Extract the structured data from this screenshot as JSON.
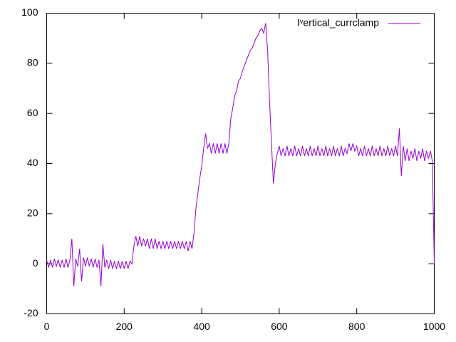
{
  "chart_data": {
    "type": "line",
    "x": [
      0,
      5,
      10,
      15,
      20,
      25,
      30,
      35,
      40,
      45,
      50,
      55,
      60,
      65,
      70,
      75,
      80,
      85,
      90,
      95,
      100,
      105,
      110,
      115,
      120,
      125,
      130,
      135,
      140,
      145,
      150,
      155,
      160,
      165,
      170,
      175,
      180,
      185,
      190,
      195,
      200,
      205,
      210,
      215,
      220,
      225,
      230,
      235,
      240,
      245,
      250,
      255,
      260,
      265,
      270,
      275,
      280,
      285,
      290,
      295,
      300,
      305,
      310,
      315,
      320,
      325,
      330,
      335,
      340,
      345,
      350,
      355,
      360,
      365,
      370,
      375,
      380,
      385,
      390,
      395,
      400,
      405,
      410,
      415,
      420,
      425,
      430,
      435,
      440,
      445,
      450,
      455,
      460,
      465,
      470,
      475,
      480,
      485,
      490,
      495,
      500,
      505,
      510,
      515,
      520,
      525,
      530,
      535,
      540,
      545,
      550,
      555,
      560,
      565,
      570,
      575,
      580,
      585,
      590,
      595,
      600,
      605,
      610,
      615,
      620,
      625,
      630,
      635,
      640,
      645,
      650,
      655,
      660,
      665,
      670,
      675,
      680,
      685,
      690,
      695,
      700,
      705,
      710,
      715,
      720,
      725,
      730,
      735,
      740,
      745,
      750,
      755,
      760,
      765,
      770,
      775,
      780,
      785,
      790,
      795,
      800,
      805,
      810,
      815,
      820,
      825,
      830,
      835,
      840,
      845,
      850,
      855,
      860,
      865,
      870,
      875,
      880,
      885,
      890,
      895,
      900,
      905,
      910,
      915,
      920,
      925,
      930,
      935,
      940,
      945,
      950,
      955,
      960,
      965,
      970,
      975,
      980,
      985,
      990,
      995,
      1000
    ],
    "series": [
      {
        "name": "Iᵛertical_currclamp",
        "color": "#9400d3",
        "values": [
          1.5,
          -1.5,
          1.5,
          -1.5,
          2,
          -1,
          1.5,
          -1.5,
          1.5,
          -1.5,
          2,
          -1.5,
          1.5,
          10,
          -9,
          2,
          -1,
          6,
          -7,
          2.5,
          -1,
          2.5,
          -1,
          2,
          -1.5,
          2,
          -1.5,
          1.5,
          -9,
          8,
          -1.5,
          1.5,
          -2,
          1.5,
          -2,
          1,
          -2,
          1,
          -2,
          1,
          -2,
          1,
          -2,
          1,
          0,
          7,
          11,
          7,
          11,
          7,
          10,
          7,
          10,
          6,
          10,
          6,
          10,
          6,
          9,
          6,
          9,
          6,
          9,
          6,
          9,
          6,
          9,
          6,
          9,
          6,
          9,
          6,
          9,
          5,
          9,
          6,
          12,
          22,
          28,
          34,
          39,
          46,
          52,
          46,
          48,
          44,
          48,
          44,
          48,
          44,
          48,
          44,
          48,
          44,
          48,
          58,
          62,
          67,
          69,
          73,
          74,
          77,
          79,
          81,
          83,
          85,
          86,
          88,
          90,
          91,
          93,
          94,
          92,
          96,
          85,
          65,
          48,
          32,
          40,
          44,
          47,
          43,
          46,
          43,
          47,
          43,
          46,
          43,
          47,
          43,
          46,
          43,
          47,
          43,
          46,
          43,
          47,
          43,
          46,
          43,
          47,
          43,
          46,
          43,
          47,
          43,
          46,
          43,
          47,
          43,
          46,
          43,
          47,
          43,
          46,
          44,
          48,
          45,
          48,
          45,
          47,
          43,
          46,
          43,
          47,
          43,
          46,
          43,
          47,
          43,
          46,
          43,
          47,
          43,
          46,
          43,
          47,
          43,
          46,
          43,
          47,
          43,
          54,
          35,
          47,
          41,
          46,
          41,
          45,
          42,
          46,
          41,
          45,
          42,
          46,
          41,
          45,
          42,
          45,
          41,
          0
        ]
      }
    ],
    "xlim": [
      0,
      1000
    ],
    "xticks": [
      0,
      200,
      400,
      600,
      800,
      1000
    ],
    "ylim": [
      -20,
      100
    ],
    "yticks": [
      -20,
      0,
      20,
      40,
      60,
      80,
      100
    ],
    "legend": "upper right",
    "grid": false
  }
}
